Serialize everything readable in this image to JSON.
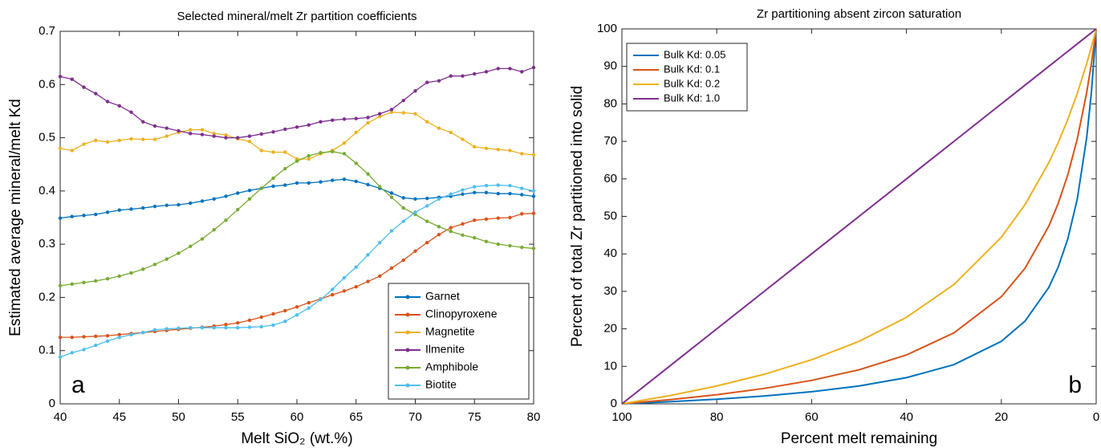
{
  "chart_data": [
    {
      "type": "line",
      "title": "Selected mineral/melt Zr partition coefficients",
      "xlabel": "Melt SiO₂ (wt.%)",
      "ylabel": "Estimated average mineral/melt Kd",
      "annotation": "a",
      "markers": true,
      "legend": "lower right",
      "x": [
        40,
        41,
        42,
        43,
        44,
        45,
        46,
        47,
        48,
        49,
        50,
        51,
        52,
        53,
        54,
        55,
        56,
        57,
        58,
        59,
        60,
        61,
        62,
        63,
        64,
        65,
        66,
        67,
        68,
        69,
        70,
        71,
        72,
        73,
        74,
        75,
        76,
        77,
        78,
        79,
        80
      ],
      "xlim": [
        40,
        80
      ],
      "xticks": [
        40,
        45,
        50,
        55,
        60,
        65,
        70,
        75,
        80
      ],
      "ylim": [
        0,
        0.7
      ],
      "yticks": [
        0,
        0.1,
        0.2,
        0.3,
        0.4,
        0.5,
        0.6,
        0.7
      ],
      "series": [
        {
          "name": "Garnet",
          "color": "#0072BD",
          "values": [
            0.349,
            0.352,
            0.354,
            0.356,
            0.36,
            0.364,
            0.366,
            0.368,
            0.371,
            0.373,
            0.374,
            0.377,
            0.381,
            0.385,
            0.39,
            0.396,
            0.401,
            0.405,
            0.409,
            0.411,
            0.415,
            0.415,
            0.417,
            0.42,
            0.422,
            0.418,
            0.412,
            0.405,
            0.396,
            0.387,
            0.385,
            0.386,
            0.388,
            0.39,
            0.394,
            0.397,
            0.397,
            0.395,
            0.395,
            0.393,
            0.39
          ]
        },
        {
          "name": "Clinopyroxene",
          "color": "#D95319",
          "values": [
            0.125,
            0.125,
            0.126,
            0.127,
            0.128,
            0.13,
            0.132,
            0.134,
            0.136,
            0.138,
            0.14,
            0.142,
            0.144,
            0.146,
            0.149,
            0.152,
            0.157,
            0.163,
            0.169,
            0.175,
            0.182,
            0.19,
            0.197,
            0.205,
            0.212,
            0.22,
            0.23,
            0.24,
            0.255,
            0.27,
            0.287,
            0.303,
            0.318,
            0.331,
            0.338,
            0.345,
            0.347,
            0.349,
            0.35,
            0.357,
            0.358
          ]
        },
        {
          "name": "Magnetite",
          "color": "#EDB120",
          "values": [
            0.48,
            0.476,
            0.488,
            0.495,
            0.492,
            0.495,
            0.498,
            0.497,
            0.497,
            0.503,
            0.51,
            0.515,
            0.515,
            0.508,
            0.505,
            0.498,
            0.493,
            0.476,
            0.473,
            0.473,
            0.46,
            0.46,
            0.47,
            0.476,
            0.49,
            0.51,
            0.528,
            0.54,
            0.548,
            0.547,
            0.545,
            0.53,
            0.518,
            0.51,
            0.497,
            0.483,
            0.48,
            0.478,
            0.476,
            0.47,
            0.468
          ]
        },
        {
          "name": "Ilmenite",
          "color": "#7E2F8E",
          "values": [
            0.615,
            0.61,
            0.595,
            0.583,
            0.568,
            0.56,
            0.548,
            0.53,
            0.522,
            0.518,
            0.513,
            0.508,
            0.506,
            0.503,
            0.5,
            0.5,
            0.503,
            0.507,
            0.511,
            0.516,
            0.52,
            0.524,
            0.53,
            0.533,
            0.535,
            0.536,
            0.538,
            0.545,
            0.553,
            0.57,
            0.588,
            0.604,
            0.607,
            0.616,
            0.616,
            0.62,
            0.624,
            0.63,
            0.63,
            0.624,
            0.632
          ]
        },
        {
          "name": "Amphibole",
          "color": "#77AC30",
          "values": [
            0.222,
            0.225,
            0.228,
            0.231,
            0.235,
            0.24,
            0.246,
            0.253,
            0.262,
            0.272,
            0.283,
            0.296,
            0.31,
            0.327,
            0.345,
            0.365,
            0.385,
            0.405,
            0.424,
            0.442,
            0.456,
            0.466,
            0.472,
            0.474,
            0.47,
            0.452,
            0.432,
            0.408,
            0.388,
            0.368,
            0.356,
            0.343,
            0.333,
            0.324,
            0.317,
            0.312,
            0.305,
            0.3,
            0.297,
            0.294,
            0.292
          ]
        },
        {
          "name": "Biotite",
          "color": "#4DBEEE",
          "values": [
            0.088,
            0.096,
            0.102,
            0.11,
            0.118,
            0.125,
            0.13,
            0.134,
            0.139,
            0.141,
            0.142,
            0.143,
            0.143,
            0.143,
            0.143,
            0.143,
            0.144,
            0.145,
            0.148,
            0.155,
            0.167,
            0.18,
            0.196,
            0.215,
            0.237,
            0.257,
            0.28,
            0.303,
            0.325,
            0.343,
            0.36,
            0.372,
            0.385,
            0.394,
            0.402,
            0.408,
            0.41,
            0.411,
            0.41,
            0.405,
            0.4
          ]
        }
      ]
    },
    {
      "type": "line",
      "title": "Zr partitioning absent zircon saturation",
      "xlabel": "Percent melt remaining",
      "ylabel": "Percent of total Zr partitioned into solid",
      "annotation": "b",
      "markers": false,
      "legend": "upper left",
      "x": [
        100,
        90,
        80,
        70,
        60,
        50,
        40,
        30,
        20,
        15,
        10,
        8,
        6,
        4,
        2,
        1,
        0
      ],
      "xlim": [
        100,
        0
      ],
      "xticks": [
        100,
        80,
        60,
        40,
        20,
        0
      ],
      "ylim": [
        0,
        100
      ],
      "yticks": [
        0,
        10,
        20,
        30,
        40,
        50,
        60,
        70,
        80,
        90,
        100
      ],
      "series": [
        {
          "name": "Bulk Kd: 0.05",
          "color": "#0072BD",
          "values": [
            0,
            0.55,
            1.23,
            2.1,
            3.23,
            4.76,
            6.98,
            10.45,
            16.67,
            22.08,
            31.03,
            36.51,
            43.93,
            54.55,
            71.01,
            83.19,
            100
          ]
        },
        {
          "name": "Bulk Kd: 0.1",
          "color": "#D95319",
          "values": [
            0,
            1.1,
            2.44,
            4.11,
            6.25,
            9.09,
            13.04,
            18.92,
            28.57,
            36.17,
            47.37,
            53.49,
            61.04,
            70.59,
            83.05,
            90.83,
            100
          ]
        },
        {
          "name": "Bulk Kd: 0.2",
          "color": "#EDB120",
          "values": [
            0,
            2.17,
            4.76,
            7.89,
            11.76,
            16.67,
            23.08,
            31.82,
            44.44,
            53.13,
            64.29,
            69.7,
            75.81,
            82.76,
            90.74,
            95.19,
            100
          ]
        },
        {
          "name": "Bulk Kd: 1.0",
          "color": "#7E2F8E",
          "values": [
            0,
            10,
            20,
            30,
            40,
            50,
            60,
            70,
            80,
            85,
            90,
            92,
            94,
            96,
            98,
            99,
            100
          ]
        }
      ]
    }
  ]
}
